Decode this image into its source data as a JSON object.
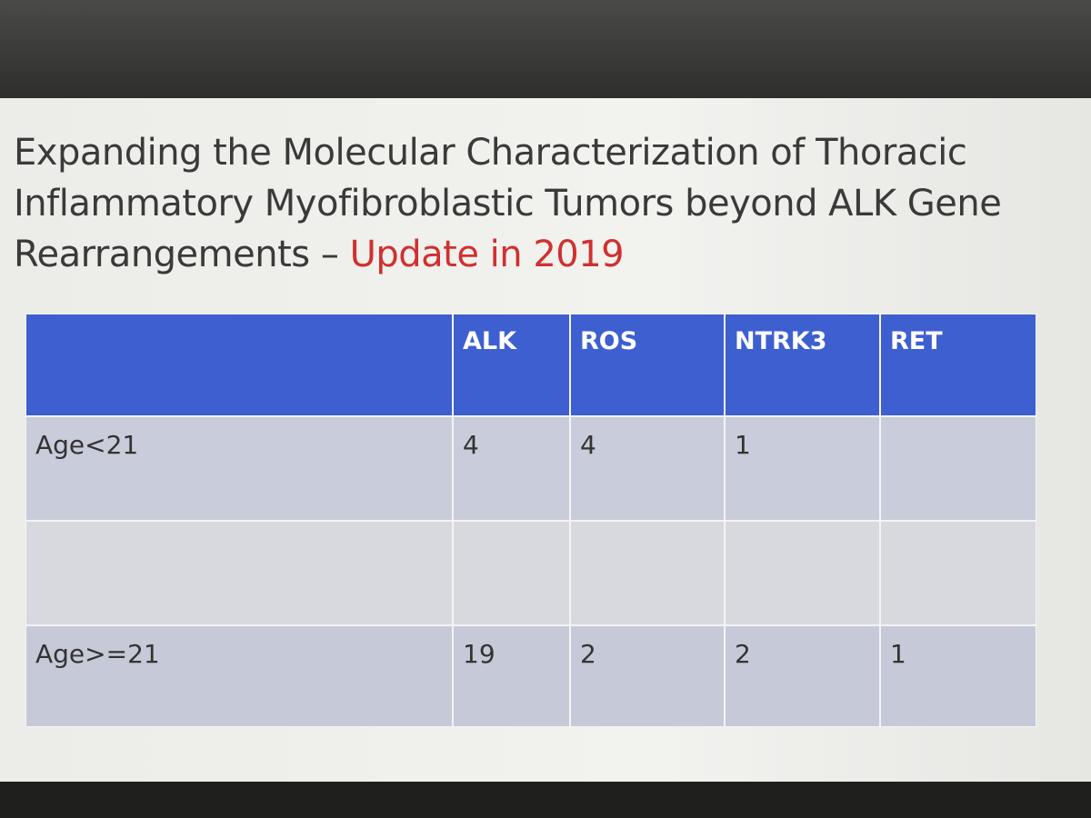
{
  "title": {
    "lines": [
      "Expanding the Molecular Characterization of Thoracic",
      "Inflammatory Myofibroblastic Tumors beyond ALK Gene",
      "Rearrangements –"
    ],
    "highlight": "Update in 2019"
  },
  "table": {
    "header": [
      null,
      "ALK",
      "ROS",
      "NTRK3",
      "RET"
    ],
    "rows": [
      [
        "Age<21",
        4,
        4,
        1,
        null
      ],
      [
        null,
        null,
        null,
        null,
        null
      ],
      [
        "Age>=21",
        19,
        2,
        2,
        1
      ]
    ]
  }
}
